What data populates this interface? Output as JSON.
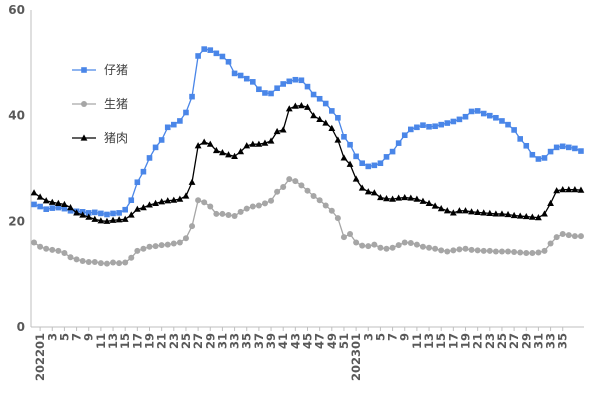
{
  "chart_data": {
    "type": "line",
    "title": "",
    "xlabel": "",
    "ylabel": "",
    "ylim": [
      0,
      60
    ],
    "yticks": [
      0,
      20,
      40,
      60
    ],
    "grid": false,
    "legend_position": "upper-left-inside",
    "x_tick_labels": [
      "202201",
      "3",
      "5",
      "7",
      "9",
      "11",
      "13",
      "15",
      "17",
      "19",
      "21",
      "23",
      "25",
      "27",
      "29",
      "31",
      "33",
      "35",
      "37",
      "39",
      "41",
      "43",
      "45",
      "47",
      "49",
      "51",
      "202301",
      "3",
      "5",
      "7",
      "9",
      "11",
      "13",
      "15",
      "17",
      "19",
      "21",
      "23",
      "25",
      "27",
      "29",
      "31",
      "33",
      "35"
    ],
    "series": [
      {
        "name": "仔猪",
        "color": "#4a86e8",
        "marker": "square",
        "values": [
          23.2,
          22.8,
          22.3,
          22.5,
          22.6,
          22.4,
          22.0,
          21.9,
          21.8,
          21.6,
          21.7,
          21.5,
          21.3,
          21.5,
          21.6,
          22.2,
          24.0,
          27.4,
          29.4,
          32.0,
          34.0,
          35.4,
          37.8,
          38.3,
          39.0,
          40.6,
          43.6,
          51.3,
          52.6,
          52.4,
          51.8,
          51.2,
          50.2,
          48.0,
          47.6,
          47.0,
          46.4,
          45.0,
          44.3,
          44.2,
          45.2,
          46.0,
          46.5,
          46.8,
          46.7,
          45.5,
          44.0,
          43.2,
          42.3,
          40.9,
          39.6,
          36.0,
          34.5,
          32.3,
          31.0,
          30.4,
          30.6,
          31.0,
          32.2,
          33.2,
          34.8,
          36.3,
          37.4,
          37.8,
          38.2,
          37.9,
          38.0,
          38.3,
          38.6,
          38.9,
          39.3,
          39.8,
          40.8,
          40.9,
          40.4,
          40.0,
          39.6,
          39.0,
          38.3,
          37.3,
          35.6,
          34.3,
          32.6,
          31.8,
          32.0,
          33.2,
          34.0,
          34.2,
          34.0,
          33.8,
          33.3
        ]
      },
      {
        "name": "生猪",
        "color": "#a6a6a6",
        "marker": "circle",
        "values": [
          16.0,
          15.2,
          14.8,
          14.6,
          14.4,
          14.0,
          13.2,
          12.8,
          12.5,
          12.3,
          12.3,
          12.1,
          12.0,
          12.2,
          12.1,
          12.2,
          13.1,
          14.4,
          14.8,
          15.2,
          15.3,
          15.5,
          15.6,
          15.8,
          16.0,
          16.8,
          19.1,
          24.0,
          23.6,
          22.8,
          21.4,
          21.4,
          21.2,
          21.0,
          21.8,
          22.4,
          22.8,
          23.0,
          23.4,
          23.9,
          25.6,
          26.5,
          28.0,
          27.6,
          26.8,
          25.8,
          24.8,
          24.0,
          23.0,
          22.0,
          20.6,
          17.0,
          17.6,
          16.0,
          15.4,
          15.3,
          15.6,
          15.0,
          14.8,
          15.0,
          15.5,
          16.0,
          15.9,
          15.6,
          15.2,
          15.0,
          14.8,
          14.5,
          14.3,
          14.5,
          14.7,
          14.8,
          14.6,
          14.5,
          14.4,
          14.4,
          14.3,
          14.3,
          14.3,
          14.2,
          14.1,
          14.0,
          14.0,
          14.1,
          14.4,
          15.8,
          17.0,
          17.6,
          17.4,
          17.2,
          17.2
        ]
      },
      {
        "name": "猪肉",
        "color": "#000000",
        "marker": "triangle",
        "values": [
          25.4,
          24.6,
          23.9,
          23.6,
          23.4,
          23.2,
          22.6,
          21.6,
          21.2,
          20.8,
          20.4,
          20.1,
          20.0,
          20.2,
          20.3,
          20.4,
          21.2,
          22.3,
          22.6,
          23.1,
          23.4,
          23.7,
          23.9,
          24.0,
          24.2,
          24.8,
          27.4,
          34.3,
          35.0,
          34.6,
          33.4,
          33.0,
          32.6,
          32.3,
          33.2,
          34.3,
          34.6,
          34.6,
          34.8,
          35.2,
          37.0,
          37.3,
          41.3,
          41.8,
          41.9,
          41.6,
          40.0,
          39.3,
          38.6,
          37.6,
          35.4,
          32.0,
          30.8,
          28.0,
          26.3,
          25.6,
          25.4,
          24.5,
          24.3,
          24.2,
          24.4,
          24.5,
          24.4,
          24.2,
          23.8,
          23.4,
          22.9,
          22.4,
          22.0,
          21.6,
          22.0,
          22.0,
          21.8,
          21.7,
          21.6,
          21.5,
          21.4,
          21.4,
          21.3,
          21.1,
          21.0,
          20.9,
          20.8,
          20.7,
          21.4,
          23.4,
          25.8,
          26.0,
          26.0,
          26.0,
          25.9
        ]
      }
    ]
  }
}
